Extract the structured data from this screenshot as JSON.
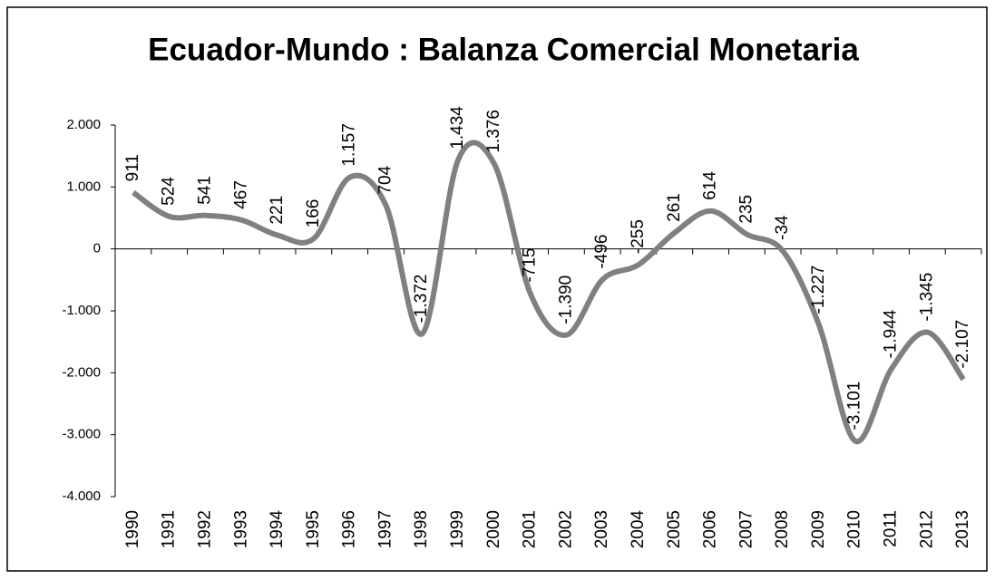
{
  "chart_data": {
    "type": "line",
    "title": "Ecuador-Mundo : Balanza Comercial Monetaria",
    "categories": [
      "1990",
      "1991",
      "1992",
      "1993",
      "1994",
      "1995",
      "1996",
      "1997",
      "1998",
      "1999",
      "2000",
      "2001",
      "2002",
      "2003",
      "2004",
      "2005",
      "2006",
      "2007",
      "2008",
      "2009",
      "2010",
      "2011",
      "2012",
      "2013"
    ],
    "series": [
      {
        "color": "#808080",
        "values": [
          911,
          524,
          541,
          467,
          221,
          166,
          1157,
          704,
          -1372,
          1434,
          1376,
          -715,
          -1390,
          -496,
          -255,
          261,
          614,
          235,
          -34,
          -1227,
          -3101,
          -1944,
          -1345,
          -2107
        ],
        "value_labels": [
          "911",
          "524",
          "541",
          "467",
          "221",
          "166",
          "1.157",
          "704",
          "-1.372",
          "1.434",
          "1.376",
          "-715",
          "-1.390",
          "-496",
          "-255",
          "261",
          "614",
          "235",
          "-34",
          "-1.227",
          "-3.101",
          "-1.944",
          "-1.345",
          "-2.107"
        ]
      }
    ],
    "ylim": [
      -4000,
      2000
    ],
    "yticks": [
      {
        "value": -4000,
        "label": "-4.000"
      },
      {
        "value": -3000,
        "label": "-3.000"
      },
      {
        "value": -2000,
        "label": "-2.000"
      },
      {
        "value": -1000,
        "label": "-1.000"
      },
      0,
      {
        "value": 1000,
        "label": "1.000"
      },
      {
        "value": 2000,
        "label": "2.000"
      }
    ],
    "smooth": true
  }
}
